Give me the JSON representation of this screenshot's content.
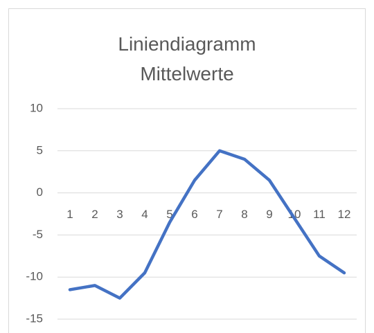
{
  "chart_data": {
    "type": "line",
    "title": "Liniendiagramm Mittelwerte",
    "categories": [
      "1",
      "2",
      "3",
      "4",
      "5",
      "6",
      "7",
      "8",
      "9",
      "10",
      "11",
      "12"
    ],
    "series": [
      {
        "name": "Mittelwerte",
        "color": "#4472c4",
        "values": [
          -11.5,
          -11,
          -12.5,
          -9.5,
          -3.5,
          1.5,
          5,
          4,
          1.5,
          -3,
          -7.5,
          -9.5
        ]
      }
    ],
    "ylim": [
      -15,
      10
    ],
    "yticks": [
      -15,
      -10,
      -5,
      0,
      5,
      10
    ],
    "grid": true
  }
}
